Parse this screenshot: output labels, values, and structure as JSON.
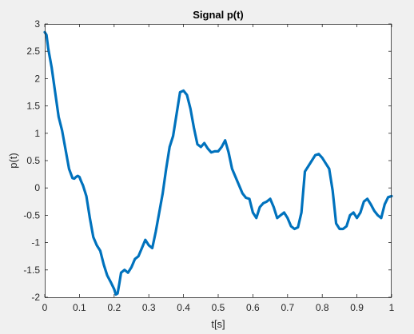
{
  "chart_data": {
    "type": "line",
    "title": "Signal p(t)",
    "xlabel": "t[s]",
    "ylabel": "p(t)",
    "xlim": [
      0,
      1
    ],
    "ylim": [
      -2,
      3
    ],
    "xticks": [
      0,
      0.1,
      0.2,
      0.3,
      0.4,
      0.5,
      0.6,
      0.7,
      0.8,
      0.9,
      1
    ],
    "xtick_labels": [
      "0",
      "0.1",
      "0.2",
      "0.3",
      "0.4",
      "0.5",
      "0.6",
      "0.7",
      "0.8",
      "0.9",
      "1"
    ],
    "yticks": [
      -2,
      -1.5,
      -1,
      -0.5,
      0,
      0.5,
      1,
      1.5,
      2,
      2.5,
      3
    ],
    "ytick_labels": [
      "-2",
      "-1.5",
      "-1",
      "-0.5",
      "0",
      "0.5",
      "1",
      "1.5",
      "2",
      "2.5",
      "3"
    ],
    "grid": false,
    "series": [
      {
        "color": "#0072bd",
        "x": [
          0,
          0.005,
          0.01,
          0.02,
          0.03,
          0.04,
          0.05,
          0.06,
          0.07,
          0.08,
          0.085,
          0.09,
          0.095,
          0.1,
          0.105,
          0.11,
          0.12,
          0.13,
          0.14,
          0.15,
          0.16,
          0.17,
          0.18,
          0.19,
          0.2,
          0.205,
          0.21,
          0.215,
          0.22,
          0.23,
          0.24,
          0.25,
          0.26,
          0.27,
          0.28,
          0.29,
          0.3,
          0.31,
          0.32,
          0.33,
          0.34,
          0.35,
          0.36,
          0.37,
          0.38,
          0.39,
          0.4,
          0.41,
          0.42,
          0.43,
          0.44,
          0.45,
          0.46,
          0.47,
          0.48,
          0.49,
          0.5,
          0.51,
          0.52,
          0.53,
          0.54,
          0.55,
          0.56,
          0.57,
          0.58,
          0.59,
          0.6,
          0.61,
          0.62,
          0.63,
          0.64,
          0.65,
          0.66,
          0.67,
          0.68,
          0.69,
          0.7,
          0.71,
          0.72,
          0.73,
          0.74,
          0.75,
          0.76,
          0.77,
          0.78,
          0.79,
          0.8,
          0.81,
          0.82,
          0.83,
          0.84,
          0.85,
          0.86,
          0.87,
          0.88,
          0.89,
          0.9,
          0.91,
          0.92,
          0.93,
          0.94,
          0.95,
          0.96,
          0.97,
          0.98,
          0.99,
          1
        ],
        "y": [
          2.85,
          2.8,
          2.55,
          2.2,
          1.75,
          1.3,
          1.05,
          0.7,
          0.35,
          0.18,
          0.17,
          0.2,
          0.22,
          0.2,
          0.12,
          0.05,
          -0.15,
          -0.55,
          -0.9,
          -1.05,
          -1.15,
          -1.4,
          -1.6,
          -1.72,
          -1.85,
          -1.95,
          -1.93,
          -1.75,
          -1.55,
          -1.5,
          -1.55,
          -1.45,
          -1.3,
          -1.25,
          -1.1,
          -0.95,
          -1.05,
          -1.1,
          -0.8,
          -0.45,
          -0.1,
          0.35,
          0.75,
          0.95,
          1.35,
          1.75,
          1.78,
          1.7,
          1.45,
          1.1,
          0.8,
          0.75,
          0.82,
          0.72,
          0.65,
          0.67,
          0.67,
          0.75,
          0.87,
          0.65,
          0.35,
          0.2,
          0.05,
          -0.1,
          -0.18,
          -0.2,
          -0.45,
          -0.55,
          -0.35,
          -0.28,
          -0.25,
          -0.2,
          -0.35,
          -0.55,
          -0.5,
          -0.45,
          -0.55,
          -0.7,
          -0.75,
          -0.72,
          -0.45,
          0.3,
          0.4,
          0.5,
          0.6,
          0.62,
          0.55,
          0.45,
          0.35,
          -0.05,
          -0.65,
          -0.75,
          -0.75,
          -0.7,
          -0.5,
          -0.45,
          -0.55,
          -0.45,
          -0.25,
          -0.2,
          -0.3,
          -0.42,
          -0.5,
          -0.55,
          -0.3,
          -0.17,
          -0.15
        ]
      }
    ]
  }
}
